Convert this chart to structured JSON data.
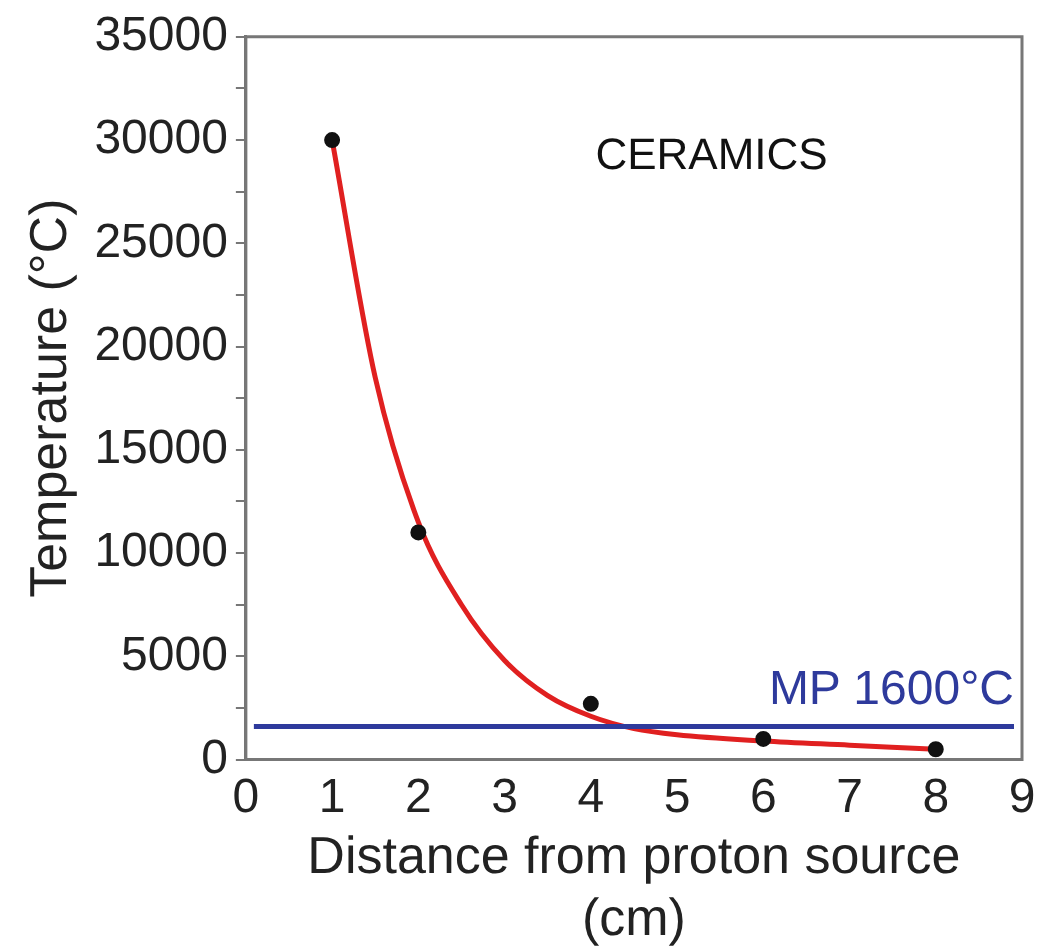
{
  "chart_data": {
    "type": "scatter",
    "xlabel": "Distance from proton source (cm)",
    "ylabel": "Temperature (°C)",
    "annotations": [
      "CERAMICS"
    ],
    "x": [
      1,
      2,
      4,
      6,
      8
    ],
    "series": [
      {
        "color": "#111111",
        "marker": "circle",
        "values": [
          30000,
          11000,
          2700,
          1000,
          500
        ]
      },
      {
        "type": "line",
        "color": "#e02020",
        "marker": "none",
        "x": [
          1,
          1.5,
          2,
          2.5,
          3,
          3.5,
          4,
          4.5,
          5,
          6,
          7,
          8
        ],
        "values": [
          30000,
          18500,
          11500,
          7500,
          4800,
          3100,
          2100,
          1500,
          1200,
          900,
          700,
          500
        ]
      }
    ],
    "ref_lines": [
      {
        "axis": "y",
        "value": 1600,
        "label": "MP 1600°C",
        "color": "#2e3a9c"
      }
    ],
    "xlim": [
      0,
      9
    ],
    "xticks": [
      0,
      1,
      2,
      3,
      4,
      5,
      6,
      7,
      8,
      9
    ],
    "ylim": [
      0,
      35000
    ],
    "yticks": [
      0,
      {
        "value": 2500,
        "label": null
      },
      5000,
      {
        "value": 7500,
        "label": null
      },
      10000,
      {
        "value": 12500,
        "label": null
      },
      15000,
      {
        "value": 17500,
        "label": null
      },
      20000,
      {
        "value": 22500,
        "label": null
      },
      25000,
      {
        "value": 27500,
        "label": null
      },
      30000,
      {
        "value": 32500,
        "label": null
      },
      35000
    ],
    "grid": false,
    "legend": false,
    "line_style": "solid"
  }
}
